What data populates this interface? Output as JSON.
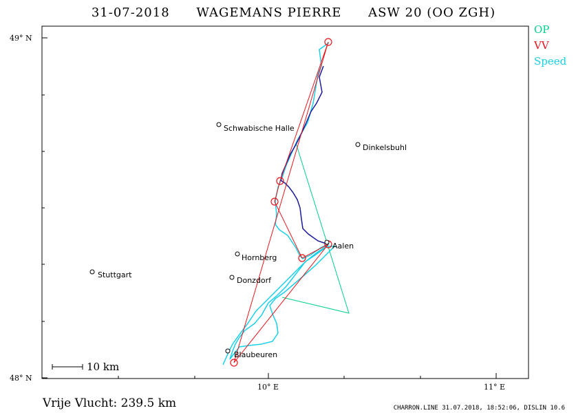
{
  "header": {
    "date": "31-07-2018",
    "pilot": "WAGEMANS PIERRE",
    "glider": "ASW 20 (OO ZGH)"
  },
  "legend": [
    {
      "label": "OP",
      "color": "#00d08a"
    },
    {
      "label": "VV",
      "color": "#e8141c"
    },
    {
      "label": "Speed",
      "color": "#18d0e8"
    }
  ],
  "axes": {
    "lat_top": "49° N",
    "lat_bottom": "48° N",
    "lon_1": "10° E",
    "lon_2": "11° E"
  },
  "places": [
    {
      "name": "Schwabische Halle"
    },
    {
      "name": "Dinkelsbuhl"
    },
    {
      "name": "Aalen"
    },
    {
      "name": "Hornberg"
    },
    {
      "name": "Stuttgart"
    },
    {
      "name": "Donzdorf"
    },
    {
      "name": "Blaubeuren"
    }
  ],
  "scale": {
    "label": "10 km"
  },
  "footer": {
    "distance": "Vrije Vlucht:  239.5 km",
    "credit": "CHARRON.LINE 31.07.2018, 18:52:06, DISLIN 10.6"
  },
  "colors": {
    "track_dark": "#1a1a9c",
    "track_speed": "#18d0e8",
    "route": "#e8141c",
    "op": "#00d08a"
  }
}
